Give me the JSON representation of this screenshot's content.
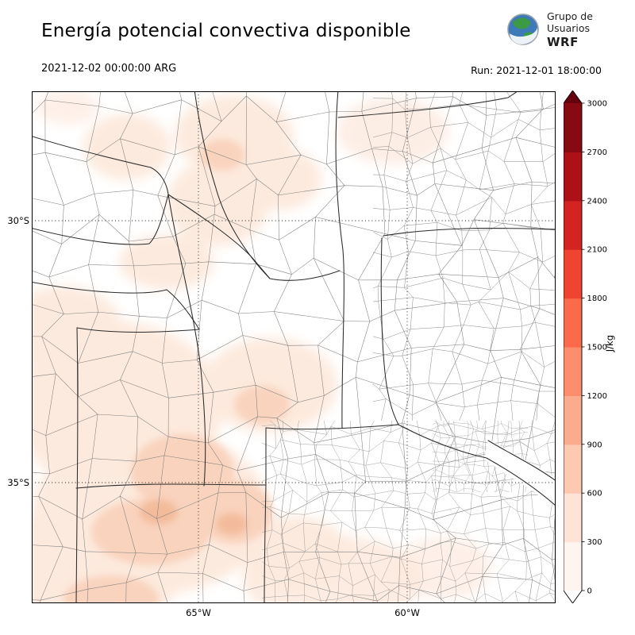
{
  "header": {
    "title": "Energía potencial convectiva disponible",
    "valid_time": "2021-12-02 00:00:00 ARG",
    "run_label": "Run: 2021-12-01 18:00:00",
    "logo": {
      "line1": "Grupo de",
      "line2": "Usuarios",
      "line3": "WRF"
    }
  },
  "map": {
    "lat_ticks": [
      "30°S",
      "35°S"
    ],
    "lon_ticks": [
      "65°W",
      "60°W"
    ]
  },
  "colorbar": {
    "unit": "J/kg",
    "tick_values": [
      "0",
      "300",
      "600",
      "900",
      "1200",
      "1500",
      "1800",
      "2100",
      "2400",
      "2700",
      "3000"
    ],
    "interval_colors": [
      "#fff5f0",
      "#fee3d6",
      "#fdc9b0",
      "#fcab8f",
      "#fc8d6d",
      "#fb6b4b",
      "#f04432",
      "#d42421",
      "#ad1117",
      "#870a12"
    ],
    "over_color": "#67000d",
    "under_color": "#ffffff"
  },
  "chart_data": {
    "type": "heatmap",
    "title": "Energía potencial convectiva disponible",
    "units": "J/kg",
    "levels": [
      0,
      300,
      600,
      900,
      1200,
      1500,
      1800,
      2100,
      2400,
      2700,
      3000
    ],
    "colormap": "Reds",
    "valid_time": "2021-12-02 00:00:00 ARG",
    "run_time": "2021-12-01 18:00:00",
    "lat_range_deg_S": [
      27.5,
      37.3
    ],
    "lon_range_deg_W": [
      69.0,
      56.4
    ],
    "gridlines": {
      "lat_deg_S": [
        30,
        35
      ],
      "lon_deg_W": [
        65,
        60
      ]
    },
    "description": "CAPE field over central Argentina with province and department boundaries; light shading (0-600 J/kg) over the west, northwest and southwest-center, strongest patches (~600-900 J/kg) near 35°S 65.5°W, near-zero values over the east and southeast"
  }
}
